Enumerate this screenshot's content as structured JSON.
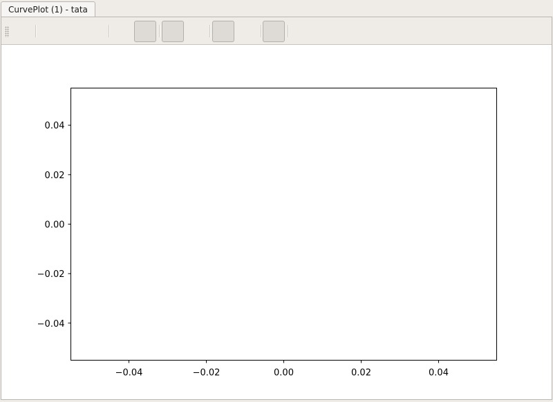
{
  "tab": {
    "label": "CurvePlot (1) - tata"
  },
  "toolbar": {
    "buttons": [
      {
        "name": "toolbar-button-1",
        "icon": "blank-icon"
      },
      {
        "name": "toolbar-button-2",
        "icon": "blank-icon"
      },
      {
        "name": "toolbar-button-3",
        "icon": "blank-icon"
      },
      {
        "name": "toolbar-button-4",
        "icon": "blank-icon"
      }
    ]
  },
  "chart_data": {
    "type": "line",
    "title": "tata",
    "xlabel": "",
    "ylabel": "",
    "series": [],
    "xlim": [
      -0.055,
      0.055
    ],
    "ylim": [
      -0.055,
      0.055
    ],
    "xticks": [
      -0.04,
      -0.02,
      0.0,
      0.02,
      0.04
    ],
    "yticks": [
      -0.04,
      -0.02,
      0.0,
      0.02,
      0.04
    ],
    "xtick_labels": [
      "−0.04",
      "−0.02",
      "0.00",
      "0.02",
      "0.04"
    ],
    "ytick_labels": [
      "−0.04",
      "−0.02",
      "0.00",
      "0.02",
      "0.04"
    ],
    "grid": false,
    "legend": "none"
  }
}
